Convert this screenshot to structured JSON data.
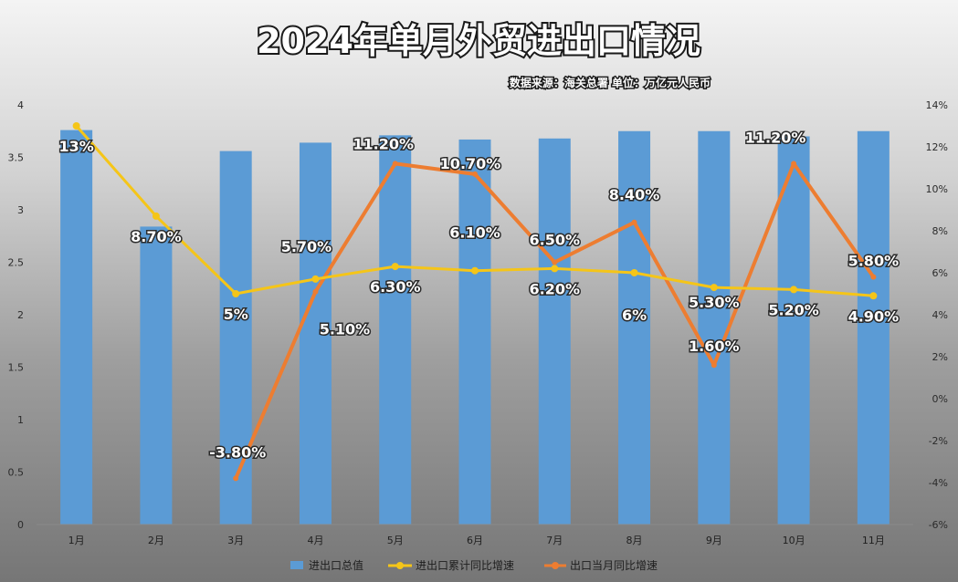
{
  "chart_data": {
    "type": "bar",
    "title": "2024年单月外贸进出口情况",
    "subtitle": "数据来源：海关总署 单位：万亿元人民币",
    "categories": [
      "1月",
      "2月",
      "3月",
      "4月",
      "5月",
      "6月",
      "7月",
      "8月",
      "9月",
      "10月",
      "11月"
    ],
    "y_left": {
      "ylim": [
        0,
        4
      ],
      "ticks": [
        "0",
        "0.5",
        "1",
        "1.5",
        "2",
        "2.5",
        "3",
        "3.5",
        "4"
      ]
    },
    "y_right": {
      "ylim": [
        -6,
        14
      ],
      "ticks": [
        "-6%",
        "-4%",
        "-2%",
        "0%",
        "2%",
        "4%",
        "6%",
        "8%",
        "10%",
        "12%",
        "14%"
      ]
    },
    "grid": false,
    "legend_position": "bottom",
    "series": [
      {
        "name": "进出口总值",
        "type": "bar",
        "axis": "left",
        "color": "#5b9bd5",
        "values": [
          3.76,
          2.84,
          3.56,
          3.64,
          3.71,
          3.67,
          3.68,
          3.75,
          3.75,
          3.7,
          3.75
        ]
      },
      {
        "name": "进出口累计同比增速",
        "type": "line",
        "axis": "right",
        "color": "#f5c518",
        "values": [
          13,
          8.7,
          5,
          5.7,
          6.3,
          6.1,
          6.2,
          6,
          5.3,
          5.2,
          4.9
        ],
        "labels": [
          "13%",
          "8.70%",
          "5%",
          "5.70%",
          "6.30%",
          "6.10%",
          "6.20%",
          "6%",
          "5.30%",
          "5.20%",
          "4.90%"
        ]
      },
      {
        "name": "出口当月同比增速",
        "type": "line",
        "axis": "right",
        "color": "#ed7d31",
        "values": [
          null,
          null,
          -3.8,
          5.1,
          11.2,
          10.7,
          6.5,
          8.4,
          1.6,
          11.2,
          5.8
        ],
        "labels": [
          null,
          null,
          "-3.80%",
          "5.10%",
          "11.20%",
          "10.70%",
          "6.50%",
          "8.40%",
          "1.60%",
          "11.20%",
          "5.80%"
        ]
      }
    ]
  }
}
